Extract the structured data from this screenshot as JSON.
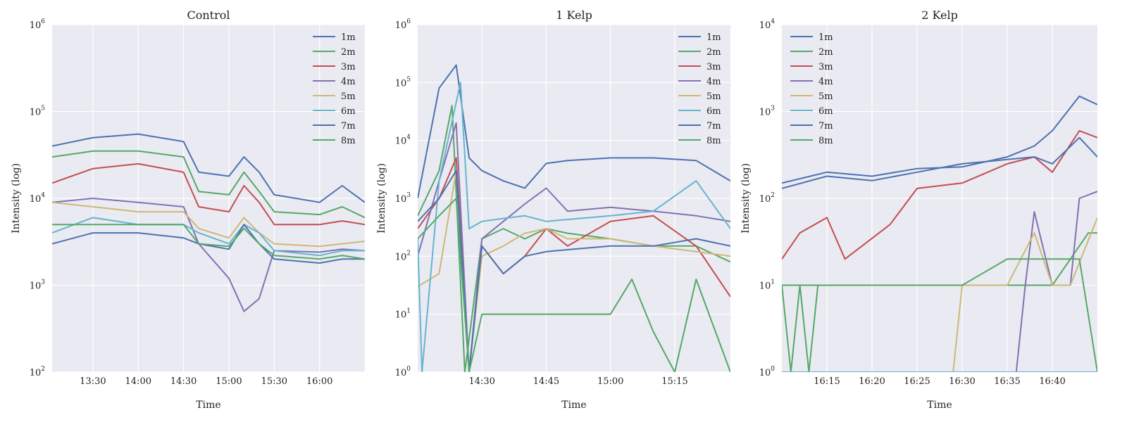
{
  "figure": {
    "background": "#ffffff",
    "axes_facecolor": "#eaeaf2",
    "grid_color": "#ffffff"
  },
  "chart_data": [
    {
      "type": "line",
      "title": "Control",
      "xlabel": "Time",
      "ylabel": "Intensity (log)",
      "yscale": "log",
      "ylim": [
        100,
        1000000
      ],
      "xlim": [
        "13:03",
        "16:30"
      ],
      "x_ticks": [
        "13:30",
        "14:00",
        "14:30",
        "15:00",
        "15:30",
        "16:00"
      ],
      "y_ticks": [
        {
          "base": "10",
          "exp": "2",
          "value": 100
        },
        {
          "base": "10",
          "exp": "3",
          "value": 1000
        },
        {
          "base": "10",
          "exp": "4",
          "value": 10000
        },
        {
          "base": "10",
          "exp": "5",
          "value": 100000
        },
        {
          "base": "10",
          "exp": "6",
          "value": 1000000
        }
      ],
      "grid": true,
      "legend_position": "top-right",
      "series": [
        {
          "name": "1m",
          "color": "#4c72b0",
          "x": [
            "13:03",
            "13:30",
            "14:00",
            "14:30",
            "14:40",
            "15:00",
            "15:10",
            "15:20",
            "15:30",
            "16:00",
            "16:15",
            "16:30"
          ],
          "y": [
            40000,
            50000,
            55000,
            45000,
            20000,
            18000,
            30000,
            20000,
            11000,
            9000,
            14000,
            9000
          ]
        },
        {
          "name": "2m",
          "color": "#55a868",
          "x": [
            "13:03",
            "13:30",
            "14:00",
            "14:30",
            "14:40",
            "15:00",
            "15:10",
            "15:20",
            "15:30",
            "16:00",
            "16:15",
            "16:30"
          ],
          "y": [
            30000,
            35000,
            35000,
            30000,
            12000,
            11000,
            20000,
            12000,
            7000,
            6500,
            8000,
            6000
          ]
        },
        {
          "name": "3m",
          "color": "#c44e52",
          "x": [
            "13:03",
            "13:30",
            "14:00",
            "14:30",
            "14:40",
            "15:00",
            "15:10",
            "15:20",
            "15:30",
            "16:00",
            "16:15",
            "16:30"
          ],
          "y": [
            15000,
            22000,
            25000,
            20000,
            8000,
            7000,
            14000,
            9000,
            5000,
            5000,
            5500,
            5000
          ]
        },
        {
          "name": "4m",
          "color": "#8172b2",
          "x": [
            "13:03",
            "13:30",
            "14:00",
            "14:30",
            "14:40",
            "15:00",
            "15:10",
            "15:20",
            "15:30",
            "16:00",
            "16:15",
            "16:30"
          ],
          "y": [
            9000,
            10000,
            9000,
            8000,
            3000,
            1200,
            500,
            700,
            2500,
            2400,
            2600,
            2500
          ]
        },
        {
          "name": "5m",
          "color": "#ccb974",
          "x": [
            "13:03",
            "13:30",
            "14:00",
            "14:30",
            "14:40",
            "15:00",
            "15:10",
            "15:20",
            "15:30",
            "16:00",
            "16:15",
            "16:30"
          ],
          "y": [
            9000,
            8000,
            7000,
            7000,
            4500,
            3500,
            6000,
            4000,
            3000,
            2800,
            3000,
            3200
          ]
        },
        {
          "name": "6m",
          "color": "#64b5cd",
          "x": [
            "13:03",
            "13:30",
            "14:00",
            "14:30",
            "14:40",
            "15:00",
            "15:10",
            "15:20",
            "15:30",
            "16:00",
            "16:15",
            "16:30"
          ],
          "y": [
            4000,
            6000,
            5000,
            5000,
            4000,
            3000,
            5000,
            4000,
            2500,
            2200,
            2500,
            2500
          ]
        },
        {
          "name": "7m",
          "color": "#4c72b0",
          "x": [
            "13:03",
            "13:30",
            "14:00",
            "14:30",
            "14:40",
            "15:00",
            "15:10",
            "15:20",
            "15:30",
            "16:00",
            "16:15",
            "16:30"
          ],
          "y": [
            3000,
            4000,
            4000,
            3500,
            3000,
            2600,
            5000,
            3000,
            2000,
            1800,
            2000,
            2000
          ]
        },
        {
          "name": "8m",
          "color": "#55a868",
          "x": [
            "13:03",
            "13:30",
            "14:00",
            "14:30",
            "14:40",
            "15:00",
            "15:10",
            "15:20",
            "15:30",
            "16:00",
            "16:15",
            "16:30"
          ],
          "y": [
            5000,
            5000,
            5000,
            5000,
            3000,
            2800,
            4500,
            3000,
            2200,
            2000,
            2200,
            2000
          ]
        }
      ]
    },
    {
      "type": "line",
      "title": "1 Kelp",
      "xlabel": "Time",
      "ylabel": "Intensity (log)",
      "yscale": "log",
      "ylim": [
        1,
        1000000
      ],
      "xlim": [
        "14:15",
        "15:28"
      ],
      "x_ticks": [
        "14:30",
        "14:45",
        "15:00",
        "15:15"
      ],
      "y_ticks": [
        {
          "base": "10",
          "exp": "0",
          "value": 1
        },
        {
          "base": "10",
          "exp": "1",
          "value": 10
        },
        {
          "base": "10",
          "exp": "2",
          "value": 100
        },
        {
          "base": "10",
          "exp": "3",
          "value": 1000
        },
        {
          "base": "10",
          "exp": "4",
          "value": 10000
        },
        {
          "base": "10",
          "exp": "5",
          "value": 100000
        },
        {
          "base": "10",
          "exp": "6",
          "value": 1000000
        }
      ],
      "grid": true,
      "legend_position": "top-right",
      "series": [
        {
          "name": "1m",
          "color": "#4c72b0",
          "x": [
            "14:15",
            "14:20",
            "14:24",
            "14:27",
            "14:30",
            "14:35",
            "14:40",
            "14:45",
            "14:50",
            "15:00",
            "15:10",
            "15:20",
            "15:28"
          ],
          "y": [
            1000,
            80000,
            200000,
            5000,
            3000,
            2000,
            1500,
            4000,
            4500,
            5000,
            5000,
            4500,
            2000
          ]
        },
        {
          "name": "2m",
          "color": "#55a868",
          "x": [
            "14:15",
            "14:20",
            "14:23",
            "14:26",
            "14:30",
            "14:35",
            "14:40",
            "14:45",
            "14:50",
            "15:00",
            "15:10",
            "15:20",
            "15:28"
          ],
          "y": [
            500,
            3000,
            40000,
            1,
            200,
            300,
            200,
            300,
            250,
            200,
            150,
            150,
            80
          ]
        },
        {
          "name": "3m",
          "color": "#c44e52",
          "x": [
            "14:15",
            "14:20",
            "14:24",
            "14:27",
            "14:30",
            "14:35",
            "14:40",
            "14:45",
            "14:50",
            "15:00",
            "15:10",
            "15:20",
            "15:28"
          ],
          "y": [
            300,
            1000,
            5000,
            1,
            150,
            50,
            100,
            300,
            150,
            400,
            500,
            150,
            20
          ]
        },
        {
          "name": "4m",
          "color": "#8172b2",
          "x": [
            "14:15",
            "14:20",
            "14:24",
            "14:27",
            "14:30",
            "14:35",
            "14:40",
            "14:45",
            "14:50",
            "15:00",
            "15:10",
            "15:20",
            "15:28"
          ],
          "y": [
            100,
            2000,
            20000,
            1,
            200,
            400,
            800,
            1500,
            600,
            700,
            600,
            500,
            400
          ]
        },
        {
          "name": "5m",
          "color": "#ccb974",
          "x": [
            "14:15",
            "14:20",
            "14:24",
            "14:27",
            "14:30",
            "14:35",
            "14:40",
            "14:45",
            "14:50",
            "15:00",
            "15:10",
            "15:20",
            "15:28"
          ],
          "y": [
            30,
            50,
            3000,
            1,
            100,
            150,
            250,
            300,
            200,
            200,
            150,
            120,
            100
          ]
        },
        {
          "name": "6m",
          "color": "#64b5cd",
          "x": [
            "14:15",
            "14:16",
            "14:20",
            "14:25",
            "14:27",
            "14:30",
            "14:35",
            "14:40",
            "14:45",
            "15:00",
            "15:10",
            "15:20",
            "15:28"
          ],
          "y": [
            200,
            1,
            2000,
            100000,
            300,
            400,
            450,
            500,
            400,
            500,
            600,
            2000,
            300
          ]
        },
        {
          "name": "7m",
          "color": "#4c72b0",
          "x": [
            "14:15",
            "14:20",
            "14:24",
            "14:27",
            "14:30",
            "14:35",
            "14:40",
            "14:45",
            "14:50",
            "15:00",
            "15:10",
            "15:20",
            "15:28"
          ],
          "y": [
            400,
            1000,
            3000,
            1,
            150,
            50,
            100,
            120,
            130,
            150,
            150,
            200,
            150
          ]
        },
        {
          "name": "8m",
          "color": "#55a868",
          "x": [
            "14:15",
            "14:20",
            "14:24",
            "14:27",
            "14:30",
            "14:35",
            "14:40",
            "14:45",
            "15:00",
            "15:05",
            "15:10",
            "15:15",
            "15:20",
            "15:28"
          ],
          "y": [
            200,
            500,
            1000,
            1,
            10,
            10,
            10,
            10,
            10,
            40,
            5,
            1,
            40,
            1
          ]
        }
      ]
    },
    {
      "type": "line",
      "title": "2 Kelp",
      "xlabel": "Time",
      "ylabel": "Intensity (log)",
      "yscale": "log",
      "ylim": [
        1,
        10000
      ],
      "xlim": [
        "16:10",
        "16:45"
      ],
      "x_ticks": [
        "16:15",
        "16:20",
        "16:25",
        "16:30",
        "16:35",
        "16:40"
      ],
      "y_ticks": [
        {
          "base": "10",
          "exp": "0",
          "value": 1
        },
        {
          "base": "10",
          "exp": "1",
          "value": 10
        },
        {
          "base": "10",
          "exp": "2",
          "value": 100
        },
        {
          "base": "10",
          "exp": "3",
          "value": 1000
        },
        {
          "base": "10",
          "exp": "4",
          "value": 10000
        }
      ],
      "grid": true,
      "legend_position": "top-left",
      "series": [
        {
          "name": "1m",
          "color": "#4c72b0",
          "x": [
            "16:10",
            "16:15",
            "16:20",
            "16:25",
            "16:30",
            "16:35",
            "16:38",
            "16:40",
            "16:43",
            "16:45"
          ],
          "y": [
            150,
            200,
            180,
            220,
            230,
            300,
            400,
            600,
            1500,
            1200
          ]
        },
        {
          "name": "2m",
          "color": "#55a868",
          "x": [
            "16:10",
            "16:12",
            "16:15",
            "16:25",
            "16:30",
            "16:35",
            "16:40",
            "16:44",
            "16:45"
          ],
          "y": [
            10,
            10,
            10,
            10,
            10,
            10,
            10,
            40,
            40
          ]
        },
        {
          "name": "3m",
          "color": "#c44e52",
          "x": [
            "16:10",
            "16:12",
            "16:15",
            "16:17",
            "16:22",
            "16:25",
            "16:30",
            "16:35",
            "16:38",
            "16:40",
            "16:43",
            "16:45"
          ],
          "y": [
            20,
            40,
            60,
            20,
            50,
            130,
            150,
            250,
            300,
            200,
            600,
            500
          ]
        },
        {
          "name": "4m",
          "color": "#8172b2",
          "x": [
            "16:10",
            "16:35",
            "16:36",
            "16:37",
            "16:38",
            "16:40",
            "16:42",
            "16:43",
            "16:45"
          ],
          "y": [
            1,
            1,
            1,
            10,
            70,
            10,
            10,
            100,
            120
          ]
        },
        {
          "name": "5m",
          "color": "#ccb974",
          "x": [
            "16:10",
            "16:29",
            "16:30",
            "16:33",
            "16:35",
            "16:38",
            "16:40",
            "16:42",
            "16:45"
          ],
          "y": [
            1,
            1,
            10,
            10,
            10,
            40,
            10,
            10,
            60
          ]
        },
        {
          "name": "6m",
          "color": "#64b5cd",
          "x": [
            "16:10",
            "16:45"
          ],
          "y": [
            1,
            1
          ]
        },
        {
          "name": "7m",
          "color": "#4c72b0",
          "x": [
            "16:10",
            "16:15",
            "16:20",
            "16:25",
            "16:30",
            "16:35",
            "16:38",
            "16:40",
            "16:43",
            "16:45"
          ],
          "y": [
            130,
            180,
            160,
            200,
            250,
            280,
            300,
            250,
            500,
            300
          ]
        },
        {
          "name": "8m",
          "color": "#55a868",
          "x": [
            "16:10",
            "16:11",
            "16:12",
            "16:13",
            "16:14",
            "16:15",
            "16:30",
            "16:35",
            "16:40",
            "16:43",
            "16:45"
          ],
          "y": [
            10,
            1,
            10,
            1,
            10,
            10,
            10,
            20,
            20,
            20,
            1
          ]
        }
      ]
    }
  ]
}
